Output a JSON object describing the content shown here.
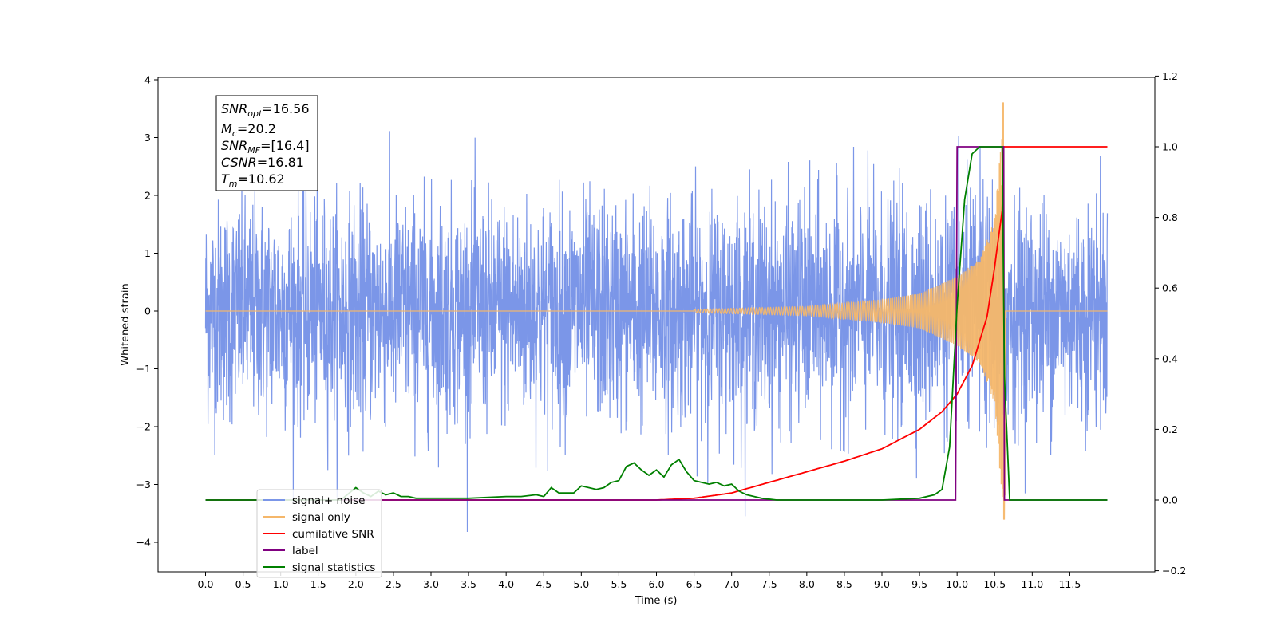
{
  "chart_data": {
    "type": "line",
    "xlabel": "Time (s)",
    "ylabel": "Whitened strain",
    "xlim": [
      -0.6,
      12.6
    ],
    "ylim": [
      -4.5,
      4.0
    ],
    "y2lim": [
      -0.2,
      1.2
    ],
    "x_ticks": [
      "0.0",
      "0.5",
      "1.0",
      "1.5",
      "2.0",
      "2.5",
      "3.0",
      "3.5",
      "4.0",
      "4.5",
      "5.0",
      "5.5",
      "6.0",
      "6.5",
      "7.0",
      "7.5",
      "8.0",
      "8.5",
      "9.0",
      "9.5",
      "10.0",
      "10.5",
      "11.0",
      "11.5"
    ],
    "y_ticks": [
      "4",
      "3",
      "2",
      "1",
      "0",
      "−1",
      "−2",
      "−3",
      "−4"
    ],
    "y2_ticks": [
      "1.2",
      "1.0",
      "0.8",
      "0.6",
      "0.4",
      "0.2",
      "0.0",
      "−0.2"
    ],
    "grid": false,
    "legend_position": "lower-left",
    "annotation": {
      "snr_opt": {
        "base": "SNR",
        "sub": "opt",
        "value": "=16.56"
      },
      "mc": {
        "base": "M",
        "sub": "c",
        "value": "=20.2"
      },
      "snr_mf": {
        "base": "SNR",
        "sub": "MF",
        "value": "=[16.4]"
      },
      "csnr": {
        "base": "CSNR",
        "value": "=16.81"
      },
      "tm": {
        "base": "T",
        "sub": "m",
        "value": "=10.62"
      }
    },
    "series": [
      {
        "name": "signal+ noise",
        "axis": "left",
        "color": "#7b96e8",
        "kind": "noise",
        "x_range": [
          0.0,
          12.0
        ],
        "noise_std": 0.95,
        "envelope_max": 3.65,
        "envelope_min": -4.1
      },
      {
        "name": "signal only",
        "axis": "left",
        "color": "#f5b76a",
        "kind": "chirp",
        "x_range": [
          0.0,
          12.0
        ],
        "merger_time": 10.62,
        "peak_amplitude": 3.6,
        "amplitude_at": [
          [
            6.5,
            0.03
          ],
          [
            8.0,
            0.08
          ],
          [
            9.0,
            0.2
          ],
          [
            9.5,
            0.3
          ],
          [
            10.0,
            0.6
          ],
          [
            10.3,
            0.9
          ],
          [
            10.5,
            1.6
          ],
          [
            10.6,
            3.3
          ]
        ]
      },
      {
        "name": "cumilative SNR",
        "axis": "right",
        "color": "#ff0000",
        "x": [
          0.0,
          6.0,
          6.5,
          7.0,
          7.5,
          8.0,
          8.5,
          9.0,
          9.5,
          9.8,
          10.0,
          10.2,
          10.4,
          10.5,
          10.55,
          10.6,
          10.62,
          10.63,
          11.0,
          11.5,
          12.0
        ],
        "y": [
          0.0,
          0.0,
          0.005,
          0.02,
          0.05,
          0.08,
          0.11,
          0.145,
          0.2,
          0.25,
          0.3,
          0.38,
          0.52,
          0.66,
          0.74,
          0.82,
          1.0,
          1.0,
          1.0,
          1.0,
          1.0
        ]
      },
      {
        "name": "label",
        "axis": "right",
        "color": "#800080",
        "x": [
          0.0,
          9.98,
          10.0,
          10.62,
          10.63,
          12.0
        ],
        "y": [
          0.0,
          0.0,
          1.0,
          1.0,
          0.0,
          0.0
        ]
      },
      {
        "name": "signal statistics",
        "axis": "right",
        "color": "#008000",
        "x": [
          0.0,
          1.8,
          2.0,
          2.1,
          2.2,
          2.3,
          2.4,
          2.5,
          2.6,
          2.7,
          2.8,
          3.0,
          3.5,
          4.0,
          4.2,
          4.4,
          4.5,
          4.6,
          4.7,
          4.9,
          5.0,
          5.1,
          5.2,
          5.3,
          5.4,
          5.5,
          5.6,
          5.7,
          5.8,
          5.9,
          6.0,
          6.1,
          6.2,
          6.3,
          6.4,
          6.5,
          6.6,
          6.7,
          6.8,
          6.9,
          7.0,
          7.1,
          7.2,
          7.3,
          7.4,
          7.6,
          9.0,
          9.5,
          9.7,
          9.8,
          9.9,
          10.0,
          10.1,
          10.2,
          10.3,
          10.6,
          10.63,
          10.7,
          11.0,
          12.0
        ],
        "y": [
          0.0,
          0.0,
          0.035,
          0.02,
          0.01,
          0.025,
          0.015,
          0.02,
          0.01,
          0.01,
          0.005,
          0.005,
          0.005,
          0.01,
          0.01,
          0.015,
          0.01,
          0.035,
          0.02,
          0.02,
          0.04,
          0.035,
          0.03,
          0.035,
          0.05,
          0.055,
          0.095,
          0.105,
          0.085,
          0.07,
          0.085,
          0.065,
          0.1,
          0.115,
          0.08,
          0.055,
          0.05,
          0.045,
          0.05,
          0.04,
          0.045,
          0.025,
          0.015,
          0.01,
          0.005,
          0.0,
          0.0,
          0.005,
          0.015,
          0.03,
          0.15,
          0.55,
          0.85,
          0.98,
          1.0,
          1.0,
          0.35,
          0.0,
          0.0,
          0.0
        ]
      }
    ],
    "legend_entries": [
      "signal+ noise",
      "signal only",
      "cumilative SNR",
      "label",
      "signal statistics"
    ]
  }
}
